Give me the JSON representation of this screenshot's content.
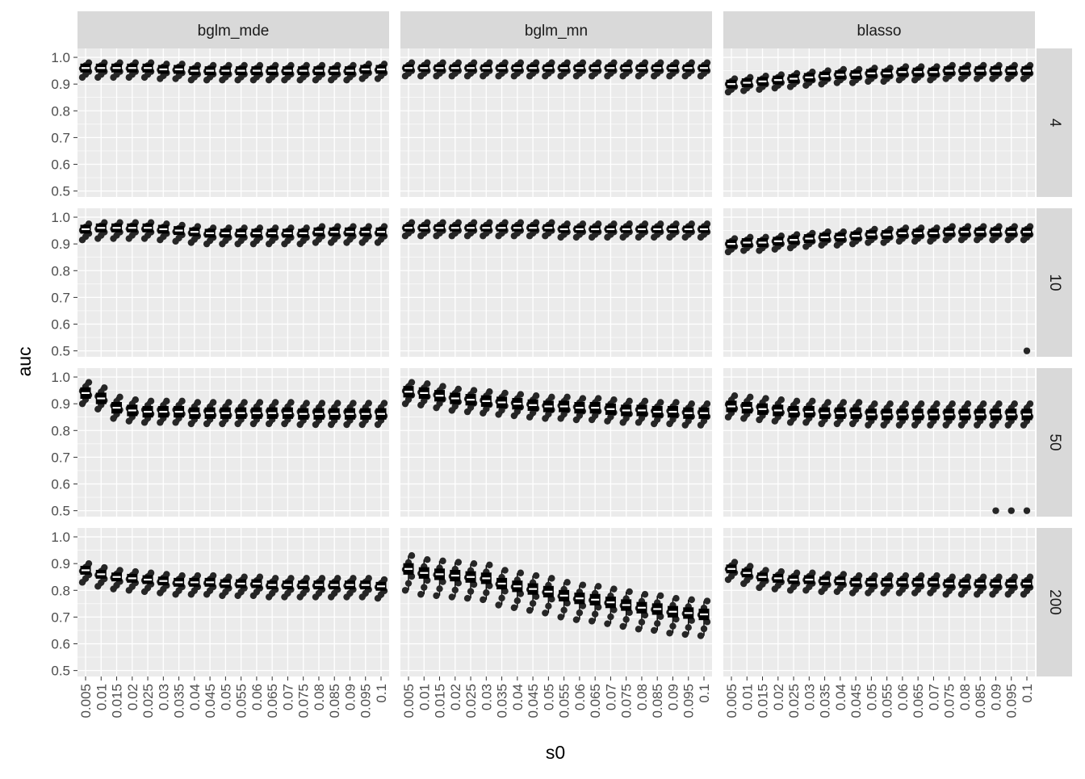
{
  "chart_data": {
    "type": "box",
    "xlabel": "s0",
    "ylabel": "auc",
    "ylim": [
      0.5,
      1.0
    ],
    "y_ticks": [
      "0.5",
      "0.6",
      "0.7",
      "0.8",
      "0.9",
      "1.0"
    ],
    "categories": [
      "0.005",
      "0.01",
      "0.015",
      "0.02",
      "0.025",
      "0.03",
      "0.035",
      "0.04",
      "0.045",
      "0.05",
      "0.055",
      "0.06",
      "0.065",
      "0.07",
      "0.075",
      "0.08",
      "0.085",
      "0.09",
      "0.095",
      "0.1"
    ],
    "facet_cols": [
      "bglm_mde",
      "bglm_mn",
      "blasso"
    ],
    "facet_rows": [
      "4",
      "10",
      "50",
      "200"
    ],
    "colors": {
      "panel_bg": "#ebebeb",
      "grid": "#ffffff",
      "strip_bg": "#d9d9d9",
      "box": "#000000",
      "median": "#ffffff",
      "point": "#262626"
    },
    "panels": [
      {
        "row": "4",
        "col": "bglm_mde",
        "medians": [
          0.96,
          0.96,
          0.96,
          0.96,
          0.96,
          0.955,
          0.955,
          0.95,
          0.95,
          0.95,
          0.95,
          0.95,
          0.95,
          0.95,
          0.95,
          0.95,
          0.95,
          0.95,
          0.955,
          0.955
        ],
        "q1_offset": 0.015,
        "q3_offset": 0.015,
        "min_offset": 0.035,
        "max_offset": 0.02
      },
      {
        "row": "4",
        "col": "bglm_mn",
        "medians": [
          0.96,
          0.96,
          0.96,
          0.96,
          0.96,
          0.96,
          0.96,
          0.96,
          0.96,
          0.96,
          0.96,
          0.96,
          0.96,
          0.96,
          0.96,
          0.96,
          0.96,
          0.96,
          0.96,
          0.96
        ],
        "q1_offset": 0.012,
        "q3_offset": 0.012,
        "min_offset": 0.03,
        "max_offset": 0.02
      },
      {
        "row": "4",
        "col": "blasso",
        "medians": [
          0.9,
          0.905,
          0.91,
          0.915,
          0.92,
          0.925,
          0.93,
          0.935,
          0.935,
          0.94,
          0.94,
          0.945,
          0.945,
          0.945,
          0.95,
          0.95,
          0.95,
          0.95,
          0.95,
          0.95
        ],
        "q1_offset": 0.015,
        "q3_offset": 0.015,
        "min_offset": 0.03,
        "max_offset": 0.02
      },
      {
        "row": "10",
        "col": "bglm_mde",
        "medians": [
          0.955,
          0.96,
          0.96,
          0.96,
          0.96,
          0.955,
          0.95,
          0.945,
          0.94,
          0.94,
          0.94,
          0.94,
          0.94,
          0.94,
          0.94,
          0.945,
          0.945,
          0.945,
          0.945,
          0.945
        ],
        "q1_offset": 0.015,
        "q3_offset": 0.015,
        "min_offset": 0.04,
        "max_offset": 0.02
      },
      {
        "row": "10",
        "col": "bglm_mn",
        "medians": [
          0.96,
          0.96,
          0.96,
          0.96,
          0.96,
          0.96,
          0.96,
          0.96,
          0.96,
          0.96,
          0.955,
          0.955,
          0.955,
          0.955,
          0.955,
          0.955,
          0.955,
          0.955,
          0.955,
          0.955
        ],
        "q1_offset": 0.012,
        "q3_offset": 0.012,
        "min_offset": 0.03,
        "max_offset": 0.02
      },
      {
        "row": "10",
        "col": "blasso",
        "medians": [
          0.9,
          0.905,
          0.905,
          0.91,
          0.915,
          0.92,
          0.925,
          0.925,
          0.93,
          0.935,
          0.935,
          0.94,
          0.94,
          0.94,
          0.945,
          0.945,
          0.945,
          0.945,
          0.945,
          0.945
        ],
        "q1_offset": 0.015,
        "q3_offset": 0.015,
        "min_offset": 0.03,
        "max_offset": 0.02,
        "outliers": [
          [
            20,
            0.5
          ]
        ]
      },
      {
        "row": "50",
        "col": "bglm_mde",
        "medians": [
          0.94,
          0.92,
          0.885,
          0.875,
          0.87,
          0.87,
          0.87,
          0.865,
          0.865,
          0.865,
          0.865,
          0.865,
          0.865,
          0.865,
          0.862,
          0.862,
          0.862,
          0.862,
          0.862,
          0.862
        ],
        "q1_offset": 0.02,
        "q3_offset": 0.02,
        "min_offset": 0.04,
        "max_offset": 0.04
      },
      {
        "row": "50",
        "col": "bglm_mn",
        "medians": [
          0.945,
          0.94,
          0.93,
          0.92,
          0.915,
          0.91,
          0.905,
          0.9,
          0.895,
          0.89,
          0.89,
          0.885,
          0.885,
          0.88,
          0.875,
          0.875,
          0.87,
          0.87,
          0.865,
          0.865
        ],
        "q1_offset": 0.02,
        "q3_offset": 0.02,
        "min_offset": 0.045,
        "max_offset": 0.035
      },
      {
        "row": "50",
        "col": "blasso",
        "medians": [
          0.89,
          0.885,
          0.88,
          0.875,
          0.87,
          0.87,
          0.865,
          0.865,
          0.865,
          0.86,
          0.86,
          0.86,
          0.86,
          0.86,
          0.86,
          0.86,
          0.86,
          0.86,
          0.86,
          0.86
        ],
        "q1_offset": 0.02,
        "q3_offset": 0.02,
        "min_offset": 0.04,
        "max_offset": 0.04,
        "outliers": [
          [
            18,
            0.5
          ],
          [
            19,
            0.5
          ],
          [
            20,
            0.5
          ]
        ]
      },
      {
        "row": "200",
        "col": "bglm_mde",
        "medians": [
          0.875,
          0.86,
          0.85,
          0.845,
          0.84,
          0.835,
          0.83,
          0.83,
          0.83,
          0.825,
          0.825,
          0.825,
          0.82,
          0.82,
          0.82,
          0.82,
          0.82,
          0.82,
          0.82,
          0.815
        ],
        "q1_offset": 0.015,
        "q3_offset": 0.015,
        "min_offset": 0.045,
        "max_offset": 0.025
      },
      {
        "row": "200",
        "col": "bglm_mn",
        "medians": [
          0.88,
          0.865,
          0.86,
          0.855,
          0.85,
          0.845,
          0.825,
          0.815,
          0.805,
          0.795,
          0.78,
          0.77,
          0.765,
          0.755,
          0.745,
          0.735,
          0.73,
          0.72,
          0.715,
          0.71
        ],
        "q1_offset": 0.02,
        "q3_offset": 0.02,
        "min_offset": 0.08,
        "max_offset": 0.05
      },
      {
        "row": "200",
        "col": "blasso",
        "medians": [
          0.88,
          0.865,
          0.85,
          0.845,
          0.84,
          0.84,
          0.835,
          0.835,
          0.83,
          0.83,
          0.83,
          0.83,
          0.83,
          0.83,
          0.825,
          0.825,
          0.825,
          0.825,
          0.825,
          0.825
        ],
        "q1_offset": 0.015,
        "q3_offset": 0.015,
        "min_offset": 0.04,
        "max_offset": 0.025
      }
    ]
  }
}
